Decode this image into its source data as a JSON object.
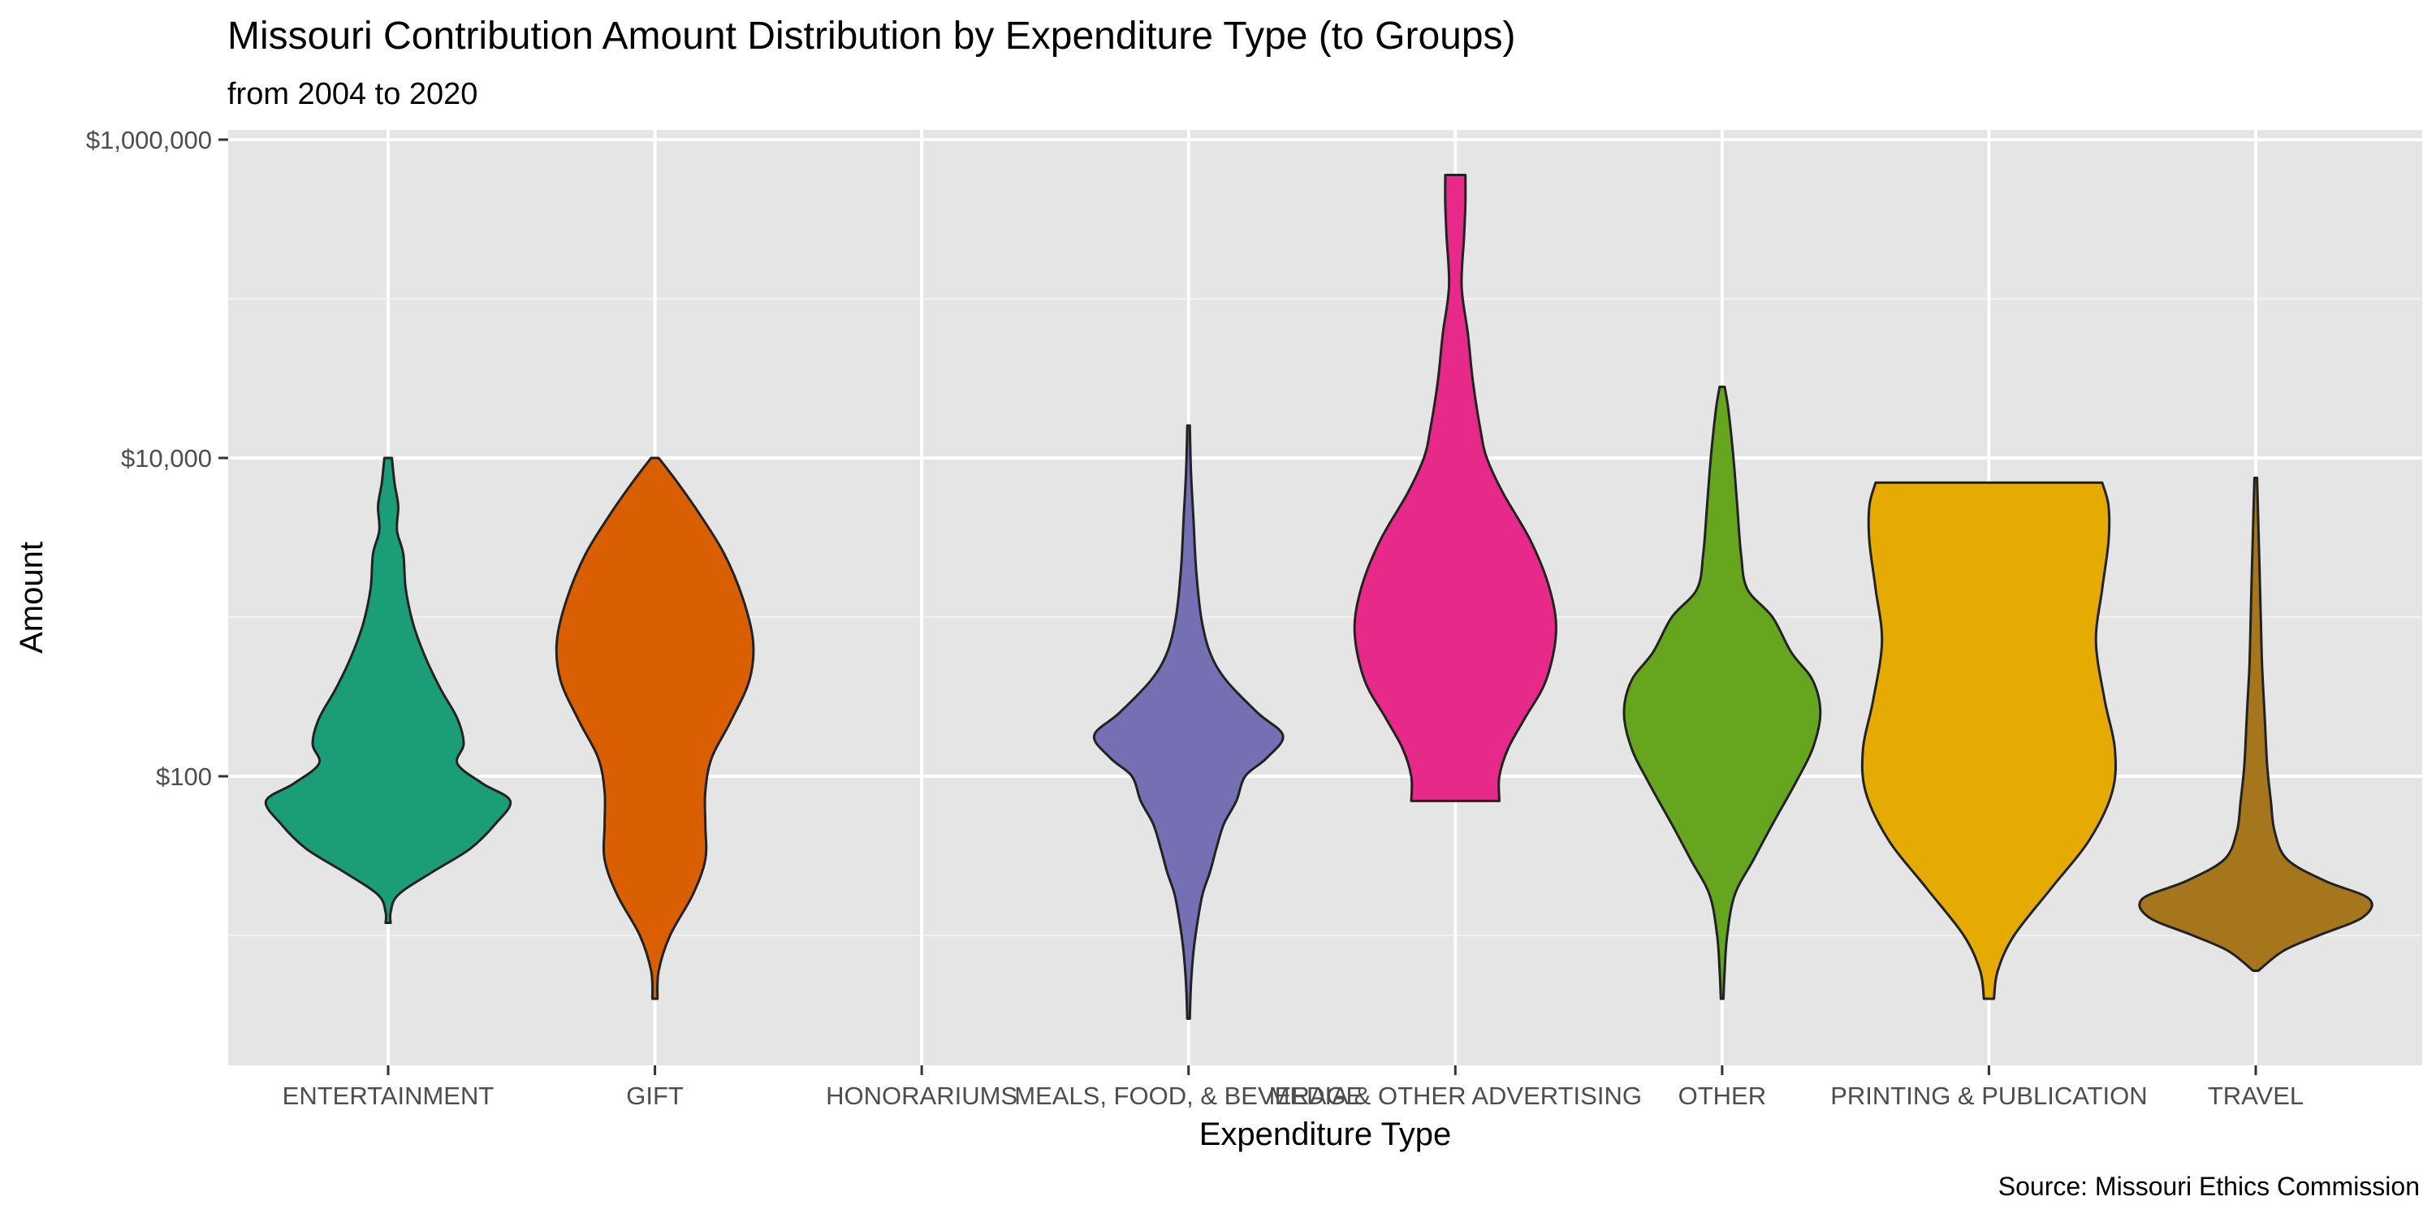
{
  "chart_data": {
    "type": "violin",
    "title": "Missouri Contribution Amount Distribution by Expenditure Type (to Groups)",
    "subtitle": "from 2004 to 2020",
    "xlabel": "Expenditure Type",
    "ylabel": "Amount",
    "caption": "Source: Missouri Ethics Commission",
    "y_scale": "log10",
    "y_ticks": [
      {
        "value": 100,
        "label": "$100"
      },
      {
        "value": 10000,
        "label": "$10,000"
      },
      {
        "value": 1000000,
        "label": "$1,000,000"
      }
    ],
    "categories": [
      "ENTERTAINMENT",
      "GIFT",
      "HONORARIUMS",
      "MEALS, FOOD, & BEVERAGE",
      "MEDIA & OTHER ADVERTISING",
      "OTHER",
      "PRINTING & PUBLICATION",
      "TRAVEL"
    ],
    "violins": [
      {
        "category": "ENTERTAINMENT",
        "color": "#1B9E77",
        "min": 12,
        "max": 10000,
        "profile": [
          [
            12,
            0.02
          ],
          [
            14,
            0.02
          ],
          [
            18,
            0.08
          ],
          [
            25,
            0.35
          ],
          [
            35,
            0.65
          ],
          [
            50,
            0.85
          ],
          [
            70,
            0.97
          ],
          [
            90,
            0.75
          ],
          [
            120,
            0.55
          ],
          [
            160,
            0.6
          ],
          [
            230,
            0.55
          ],
          [
            350,
            0.42
          ],
          [
            550,
            0.3
          ],
          [
            900,
            0.2
          ],
          [
            1500,
            0.14
          ],
          [
            2500,
            0.12
          ],
          [
            3500,
            0.07
          ],
          [
            5000,
            0.08
          ],
          [
            7000,
            0.05
          ],
          [
            10000,
            0.03
          ]
        ]
      },
      {
        "category": "GIFT",
        "color": "#D95F02",
        "min": 4,
        "max": 10000,
        "profile": [
          [
            4,
            0.02
          ],
          [
            6,
            0.03
          ],
          [
            10,
            0.12
          ],
          [
            18,
            0.3
          ],
          [
            30,
            0.4
          ],
          [
            50,
            0.4
          ],
          [
            80,
            0.4
          ],
          [
            130,
            0.45
          ],
          [
            220,
            0.6
          ],
          [
            400,
            0.75
          ],
          [
            700,
            0.78
          ],
          [
            1300,
            0.7
          ],
          [
            2500,
            0.55
          ],
          [
            4500,
            0.35
          ],
          [
            7000,
            0.18
          ],
          [
            10000,
            0.03
          ]
        ]
      },
      {
        "category": "MEALS, FOOD, & BEVERAGE",
        "color": "#7570B3",
        "min": 3,
        "max": 16000,
        "profile": [
          [
            3,
            0.01
          ],
          [
            5,
            0.02
          ],
          [
            8,
            0.04
          ],
          [
            12,
            0.07
          ],
          [
            18,
            0.11
          ],
          [
            25,
            0.17
          ],
          [
            35,
            0.22
          ],
          [
            50,
            0.28
          ],
          [
            70,
            0.38
          ],
          [
            100,
            0.45
          ],
          [
            130,
            0.62
          ],
          [
            180,
            0.75
          ],
          [
            250,
            0.55
          ],
          [
            400,
            0.3
          ],
          [
            600,
            0.17
          ],
          [
            1000,
            0.1
          ],
          [
            2000,
            0.06
          ],
          [
            4000,
            0.04
          ],
          [
            8000,
            0.02
          ],
          [
            16000,
            0.01
          ]
        ]
      },
      {
        "category": "MEDIA & OTHER ADVERTISING",
        "color": "#E7298A",
        "min": 70,
        "max": 600000,
        "profile": [
          [
            70,
            0.35
          ],
          [
            100,
            0.35
          ],
          [
            150,
            0.42
          ],
          [
            230,
            0.55
          ],
          [
            400,
            0.72
          ],
          [
            800,
            0.8
          ],
          [
            1500,
            0.75
          ],
          [
            3000,
            0.6
          ],
          [
            6000,
            0.38
          ],
          [
            10000,
            0.25
          ],
          [
            15000,
            0.2
          ],
          [
            30000,
            0.14
          ],
          [
            60000,
            0.1
          ],
          [
            120000,
            0.05
          ],
          [
            250000,
            0.07
          ],
          [
            400000,
            0.08
          ],
          [
            600000,
            0.08
          ]
        ]
      },
      {
        "category": "OTHER",
        "color": "#66A61E",
        "min": 4,
        "max": 28000,
        "profile": [
          [
            4,
            0.01
          ],
          [
            6,
            0.02
          ],
          [
            10,
            0.04
          ],
          [
            18,
            0.1
          ],
          [
            30,
            0.25
          ],
          [
            50,
            0.4
          ],
          [
            90,
            0.58
          ],
          [
            150,
            0.72
          ],
          [
            250,
            0.78
          ],
          [
            400,
            0.72
          ],
          [
            600,
            0.55
          ],
          [
            1000,
            0.4
          ],
          [
            1500,
            0.2
          ],
          [
            2500,
            0.15
          ],
          [
            5000,
            0.12
          ],
          [
            10000,
            0.09
          ],
          [
            20000,
            0.05
          ],
          [
            28000,
            0.02
          ]
        ]
      },
      {
        "category": "PRINTING & PUBLICATION",
        "color": "#E6AB02",
        "min": 4,
        "max": 7000,
        "profile": [
          [
            4,
            0.04
          ],
          [
            6,
            0.07
          ],
          [
            10,
            0.2
          ],
          [
            20,
            0.5
          ],
          [
            40,
            0.8
          ],
          [
            80,
            0.98
          ],
          [
            150,
            1.0
          ],
          [
            300,
            0.92
          ],
          [
            700,
            0.85
          ],
          [
            1500,
            0.9
          ],
          [
            3000,
            0.95
          ],
          [
            5000,
            0.95
          ],
          [
            7000,
            0.9
          ]
        ]
      },
      {
        "category": "TRAVEL",
        "color": "#A6761D",
        "min": 6,
        "max": 7500,
        "profile": [
          [
            6,
            0.02
          ],
          [
            8,
            0.22
          ],
          [
            10,
            0.5
          ],
          [
            13,
            0.85
          ],
          [
            17,
            0.9
          ],
          [
            22,
            0.55
          ],
          [
            30,
            0.25
          ],
          [
            45,
            0.15
          ],
          [
            70,
            0.12
          ],
          [
            120,
            0.09
          ],
          [
            250,
            0.07
          ],
          [
            500,
            0.05
          ],
          [
            1000,
            0.04
          ],
          [
            2000,
            0.03
          ],
          [
            4000,
            0.02
          ],
          [
            7500,
            0.01
          ]
        ]
      }
    ]
  }
}
